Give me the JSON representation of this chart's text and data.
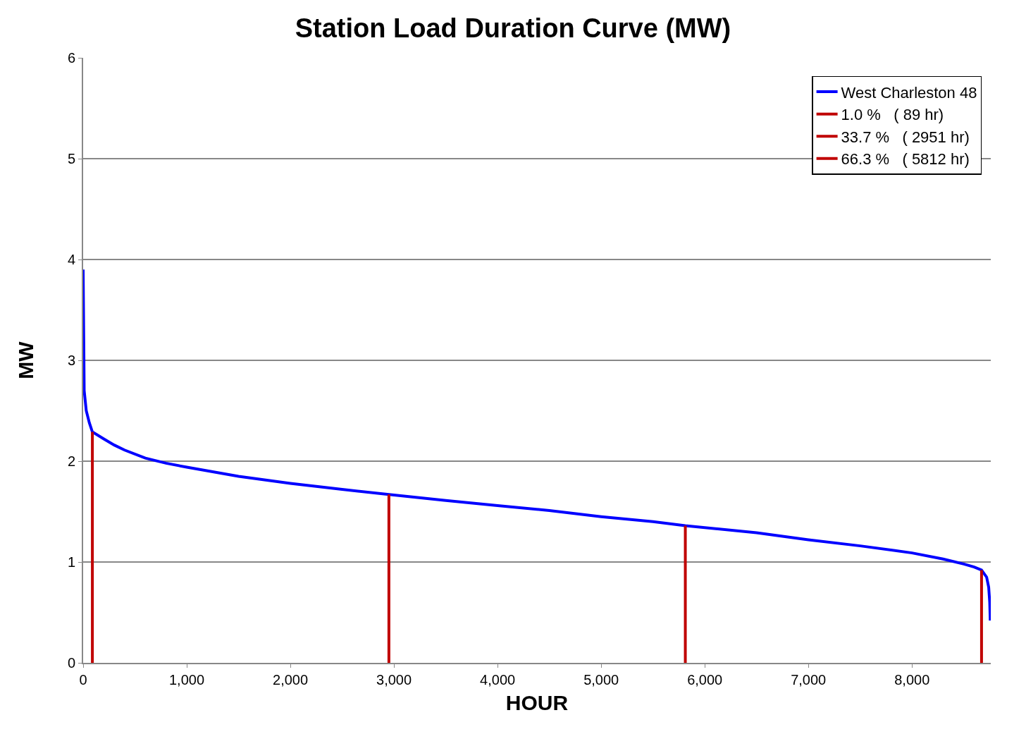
{
  "chart_data": {
    "type": "line",
    "title": "Station Load Duration Curve (MW)",
    "xlabel": "HOUR",
    "ylabel": "MW",
    "xlim": [
      0,
      8760
    ],
    "xticks": [
      0,
      {
        "value": 1000,
        "label": "1,000"
      },
      {
        "value": 2000,
        "label": "2,000"
      },
      {
        "value": 3000,
        "label": "3,000"
      },
      {
        "value": 4000,
        "label": "4,000"
      },
      {
        "value": 5000,
        "label": "5,000"
      },
      {
        "value": 6000,
        "label": "6,000"
      },
      {
        "value": 7000,
        "label": "7,000"
      },
      {
        "value": 8000,
        "label": "8,000"
      }
    ],
    "ylim": [
      0,
      6
    ],
    "yticks": [
      0,
      1,
      2,
      3,
      4,
      5,
      6
    ],
    "grid": "y",
    "legend": "top right",
    "marker": "none",
    "line_style": "solid",
    "series": [
      {
        "name": "West Charleston 48",
        "color": "#0000ff",
        "x": [
          0,
          10,
          30,
          60,
          89,
          200,
          300,
          400,
          600,
          800,
          1000,
          1500,
          2000,
          2500,
          2951,
          3500,
          4000,
          4500,
          5000,
          5500,
          5812,
          6500,
          7000,
          7500,
          8000,
          8300,
          8500,
          8600,
          8671,
          8720,
          8740,
          8750,
          8755
        ],
        "values": [
          3.9,
          2.7,
          2.5,
          2.38,
          2.29,
          2.22,
          2.16,
          2.11,
          2.03,
          1.98,
          1.94,
          1.85,
          1.78,
          1.72,
          1.67,
          1.61,
          1.56,
          1.51,
          1.45,
          1.4,
          1.36,
          1.29,
          1.22,
          1.16,
          1.09,
          1.03,
          0.98,
          0.95,
          0.92,
          0.85,
          0.75,
          0.6,
          0.42
        ]
      },
      {
        "name": "1.0 %   ( 89 hr)",
        "color": "#c00000",
        "x": [
          89,
          89
        ],
        "values": [
          0,
          2.29
        ]
      },
      {
        "name": "33.7 %   ( 2951 hr)",
        "color": "#c00000",
        "x": [
          2951,
          2951
        ],
        "values": [
          0,
          1.67
        ]
      },
      {
        "name": "66.3 %   ( 5812 hr)",
        "color": "#c00000",
        "x": [
          5812,
          5812
        ],
        "values": [
          0,
          1.36
        ]
      },
      {
        "color": "#c00000",
        "x": [
          8671,
          8671
        ],
        "values": [
          0,
          0.92
        ]
      }
    ]
  }
}
